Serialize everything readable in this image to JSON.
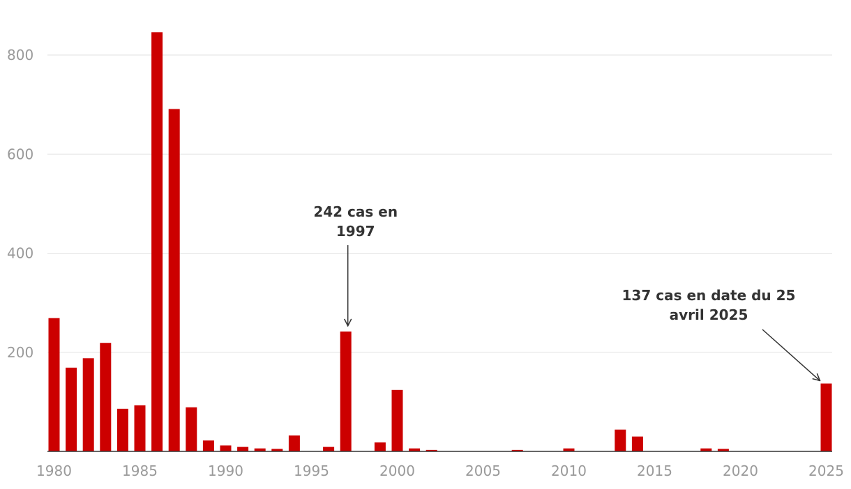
{
  "chart_data": {
    "type": "bar",
    "title": "",
    "xlabel": "",
    "ylabel": "",
    "x": [
      1980,
      1981,
      1982,
      1983,
      1984,
      1985,
      1986,
      1987,
      1988,
      1989,
      1990,
      1991,
      1992,
      1993,
      1994,
      1995,
      1996,
      1997,
      1998,
      1999,
      2000,
      2001,
      2002,
      2003,
      2004,
      2005,
      2006,
      2007,
      2008,
      2009,
      2010,
      2011,
      2012,
      2013,
      2014,
      2015,
      2016,
      2017,
      2018,
      2019,
      2020,
      2021,
      2022,
      2023,
      2024,
      2025
    ],
    "values": [
      269,
      169,
      188,
      219,
      86,
      93,
      846,
      691,
      89,
      22,
      12,
      9,
      6,
      5,
      32,
      0,
      9,
      242,
      0,
      18,
      124,
      6,
      3,
      0,
      0,
      0,
      0,
      3,
      0,
      0,
      6,
      0,
      0,
      44,
      30,
      0,
      0,
      0,
      6,
      5,
      0,
      0,
      0,
      0,
      0,
      137
    ],
    "xlim": [
      1980,
      2025
    ],
    "ylim": [
      0,
      850
    ],
    "x_ticks": [
      "1980",
      "1985",
      "1990",
      "1995",
      "2000",
      "2005",
      "2010",
      "2015",
      "2020",
      "2025"
    ],
    "y_ticks": [
      "200",
      "400",
      "600",
      "800"
    ],
    "grid": true,
    "bar_color": "#cc0000",
    "annotations": [
      {
        "year": 1997,
        "value": 242,
        "lines": [
          "242 cas en",
          "1997"
        ]
      },
      {
        "year": 2025,
        "value": 137,
        "lines": [
          "137 cas en date du 25",
          "avril 2025"
        ]
      }
    ]
  }
}
